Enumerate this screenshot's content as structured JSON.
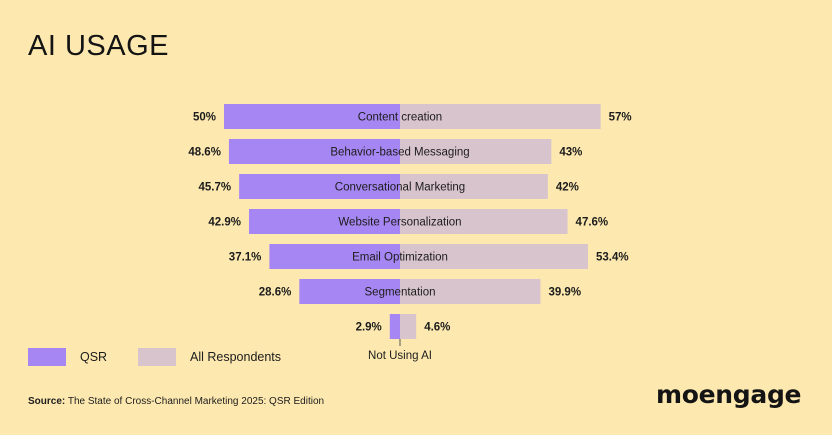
{
  "title": "AI USAGE",
  "colors": {
    "qsr": "#a686f2",
    "all": "#d8c4cc",
    "background": "#fde9b0"
  },
  "legend": {
    "qsr": "QSR",
    "all": "All Respondents"
  },
  "source": {
    "label": "Source:",
    "text": "The State of Cross-Channel Marketing 2025: QSR Edition"
  },
  "logo": "moengage",
  "chart_data": {
    "type": "bar",
    "orientation": "horizontal-diverging",
    "title": "AI USAGE",
    "categories": [
      "Content creation",
      "Behavior-based Messaging",
      "Conversational Marketing",
      "Website Personalization",
      "Email Optimization",
      "Segmentation",
      "Not Using AI"
    ],
    "series": [
      {
        "name": "QSR",
        "values": [
          50,
          48.6,
          45.7,
          42.9,
          37.1,
          28.6,
          2.9
        ],
        "labels": [
          "50%",
          "48.6%",
          "45.7%",
          "42.9%",
          "37.1%",
          "28.6%",
          "2.9%"
        ]
      },
      {
        "name": "All Respondents",
        "values": [
          57,
          43,
          42,
          47.6,
          53.4,
          39.9,
          4.6
        ],
        "labels": [
          "57%",
          "43%",
          "42%",
          "47.6%",
          "53.4%",
          "39.9%",
          "4.6%"
        ]
      }
    ],
    "legend": "bottom-left",
    "grid": false
  }
}
